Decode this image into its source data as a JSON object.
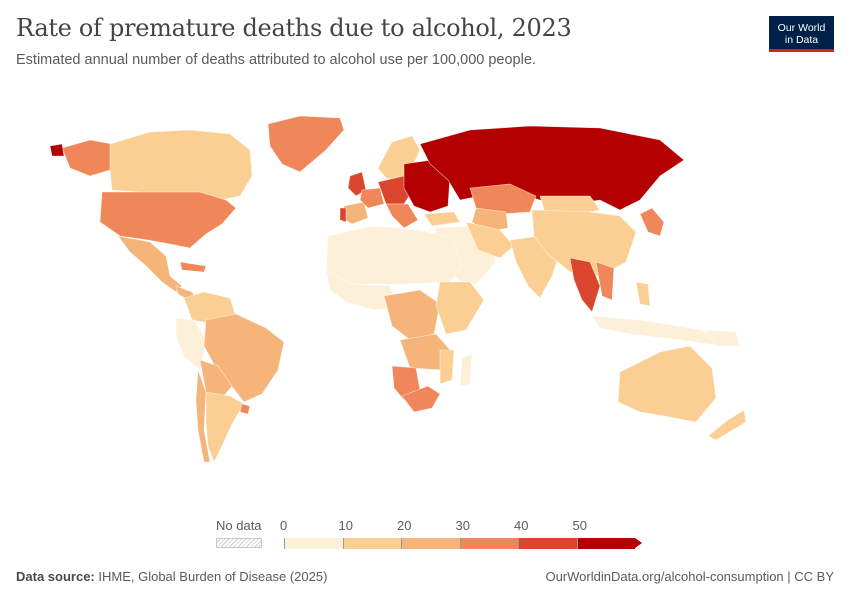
{
  "header": {
    "title": "Rate of premature deaths due to alcohol, 2023",
    "subtitle": "Estimated annual number of deaths attributed to alcohol use per 100,000 people."
  },
  "logo": {
    "line1": "Our World",
    "line2": "in Data"
  },
  "legend": {
    "no_data_label": "No data",
    "bins": [
      {
        "label": "0",
        "color": "#fdf0d9"
      },
      {
        "label": "10",
        "color": "#fbcf93"
      },
      {
        "label": "20",
        "color": "#f4b47a"
      },
      {
        "label": "30",
        "color": "#f0875b"
      },
      {
        "label": "40",
        "color": "#d9462d"
      },
      {
        "label": "50",
        "color": "#b40000"
      }
    ]
  },
  "colors": {
    "bin0": "#fdf0d9",
    "bin1": "#fbcf93",
    "bin2": "#f4b47a",
    "bin3": "#f0875b",
    "bin4": "#d9462d",
    "bin5": "#b40000",
    "no_data": "#e6e6e6"
  },
  "footer": {
    "source_label": "Data source:",
    "source_text": "IHME, Global Burden of Disease (2025)",
    "url": "OurWorldinData.org/alcohol-consumption | CC BY"
  }
}
